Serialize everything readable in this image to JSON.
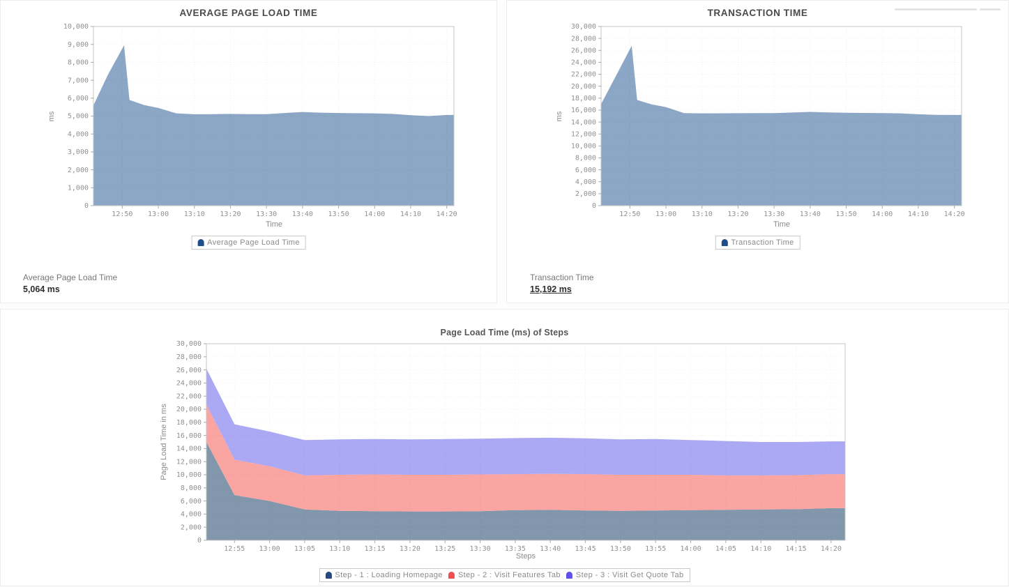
{
  "summaries": {
    "avg_page_load": {
      "label": "Average Page Load Time",
      "value": "5,064 ms"
    },
    "transaction": {
      "label": "Transaction Time",
      "value": "15,192 ms"
    }
  },
  "chart_data": [
    {
      "type": "area",
      "title": "AVERAGE PAGE LOAD TIME",
      "xlabel": "Time",
      "ylabel": "ms",
      "ylim": [
        0,
        10000
      ],
      "ytick_step": 1000,
      "grid": "dotted",
      "legend_position": "bottom",
      "xticks": [
        "12:50",
        "13:00",
        "13:10",
        "13:20",
        "13:30",
        "13:40",
        "13:50",
        "14:00",
        "14:10",
        "14:20"
      ],
      "series": [
        {
          "name": "Average Page Load Time",
          "fill": "#8ca6c6",
          "legend_color": "#1f4e8c",
          "x_minutes_after_noon": [
            42,
            46,
            50.5,
            52,
            56,
            60,
            65,
            70,
            75,
            80,
            85,
            90,
            95,
            100,
            105,
            110,
            115,
            120,
            125,
            130,
            135,
            140,
            142
          ],
          "values": [
            5600,
            7300,
            8950,
            5900,
            5620,
            5450,
            5150,
            5100,
            5110,
            5120,
            5110,
            5110,
            5170,
            5230,
            5190,
            5170,
            5160,
            5150,
            5120,
            5050,
            5000,
            5064,
            5064
          ]
        }
      ]
    },
    {
      "type": "area",
      "title": "TRANSACTION TIME",
      "xlabel": "Time",
      "ylabel": "ms",
      "ylim": [
        0,
        30000
      ],
      "ytick_step": 2000,
      "grid": "dotted",
      "legend_position": "bottom",
      "xticks": [
        "12:50",
        "13:00",
        "13:10",
        "13:20",
        "13:30",
        "13:40",
        "13:50",
        "14:00",
        "14:10",
        "14:20"
      ],
      "series": [
        {
          "name": "Transaction Time",
          "fill": "#8ca6c6",
          "legend_color": "#1f4e8c",
          "x_minutes_after_noon": [
            42,
            46,
            50.5,
            52,
            56,
            60,
            65,
            70,
            75,
            80,
            85,
            90,
            95,
            100,
            105,
            110,
            115,
            120,
            125,
            130,
            135,
            140,
            142
          ],
          "values": [
            17000,
            21600,
            26750,
            17700,
            16950,
            16500,
            15500,
            15450,
            15470,
            15480,
            15490,
            15500,
            15600,
            15700,
            15620,
            15550,
            15520,
            15500,
            15450,
            15300,
            15200,
            15192,
            15192
          ]
        }
      ]
    },
    {
      "type": "stacked-area",
      "title": "Page Load Time (ms) of Steps",
      "xlabel": "Steps",
      "ylabel": "Page Load Time in ms",
      "ylim": [
        0,
        30000
      ],
      "ytick_step": 2000,
      "grid": "dotted",
      "legend_position": "bottom",
      "xticks": [
        "12:55",
        "13:00",
        "13:05",
        "13:10",
        "13:15",
        "13:20",
        "13:25",
        "13:30",
        "13:35",
        "13:40",
        "13:45",
        "13:50",
        "13:55",
        "14:00",
        "14:05",
        "14:10",
        "14:15",
        "14:20"
      ],
      "x_minutes_after_noon": [
        51,
        55,
        60,
        65,
        70,
        75,
        80,
        85,
        90,
        95,
        100,
        105,
        110,
        115,
        120,
        125,
        130,
        135,
        140,
        142
      ],
      "series": [
        {
          "name": "Step - 1 : Loading Homepage",
          "fill": "#8296ac",
          "legend_color": "#27477f",
          "values": [
            15000,
            6900,
            6000,
            4700,
            4500,
            4450,
            4400,
            4400,
            4450,
            4600,
            4650,
            4550,
            4500,
            4550,
            4600,
            4650,
            4700,
            4750,
            4900,
            4900
          ]
        },
        {
          "name": "Step - 2 : Visit Features Tab",
          "fill": "#fba5a2",
          "legend_color": "#ee5051",
          "values": [
            5700,
            5400,
            5300,
            5200,
            5500,
            5600,
            5600,
            5600,
            5600,
            5500,
            5500,
            5550,
            5500,
            5450,
            5400,
            5250,
            5200,
            5200,
            5200,
            5200
          ]
        },
        {
          "name": "Step - 3 : Visit Get Quote Tab",
          "fill": "#aba8f4",
          "legend_color": "#5d52e5",
          "values": [
            5500,
            5400,
            5300,
            5400,
            5400,
            5400,
            5400,
            5450,
            5450,
            5500,
            5500,
            5450,
            5400,
            5450,
            5300,
            5250,
            5100,
            5050,
            5000,
            5000
          ]
        }
      ]
    }
  ]
}
